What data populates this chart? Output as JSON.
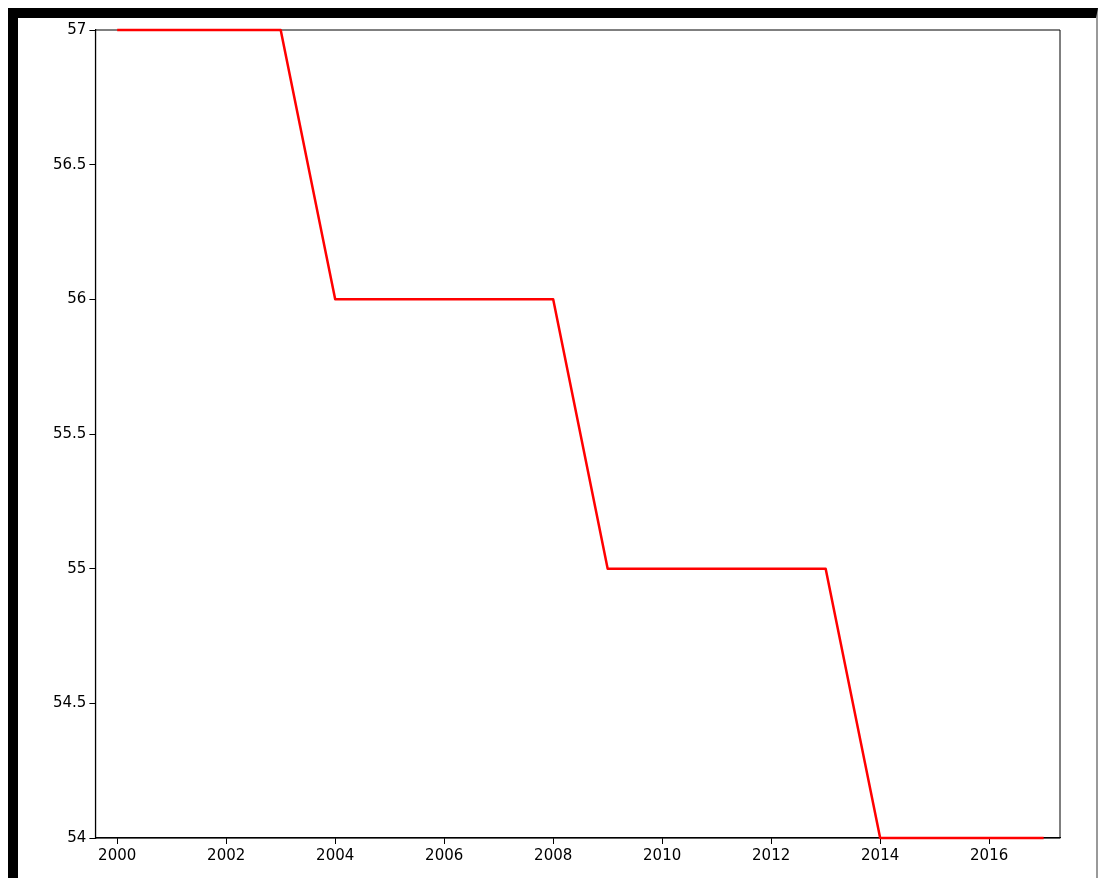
{
  "chart_data": {
    "type": "line",
    "x": [
      2000,
      2001,
      2002,
      2003,
      2004,
      2005,
      2006,
      2007,
      2008,
      2009,
      2010,
      2011,
      2012,
      2013,
      2014,
      2015,
      2016,
      2017
    ],
    "series": [
      {
        "color": "#ff0000",
        "values": [
          57,
          57,
          57,
          57,
          56,
          56,
          56,
          56,
          56,
          55,
          55,
          55,
          55,
          55,
          54,
          54,
          54,
          54
        ]
      }
    ],
    "xlim": [
      1999.6,
      2017.3
    ],
    "xticks": [
      2000,
      2002,
      2004,
      2006,
      2008,
      2010,
      2012,
      2014,
      2016
    ],
    "ylim": [
      54,
      57
    ],
    "yticks": [
      54,
      54.5,
      55,
      55.5,
      56,
      56.5,
      57
    ],
    "grid": false,
    "legend": false,
    "marker": "none",
    "line_style": "solid"
  }
}
